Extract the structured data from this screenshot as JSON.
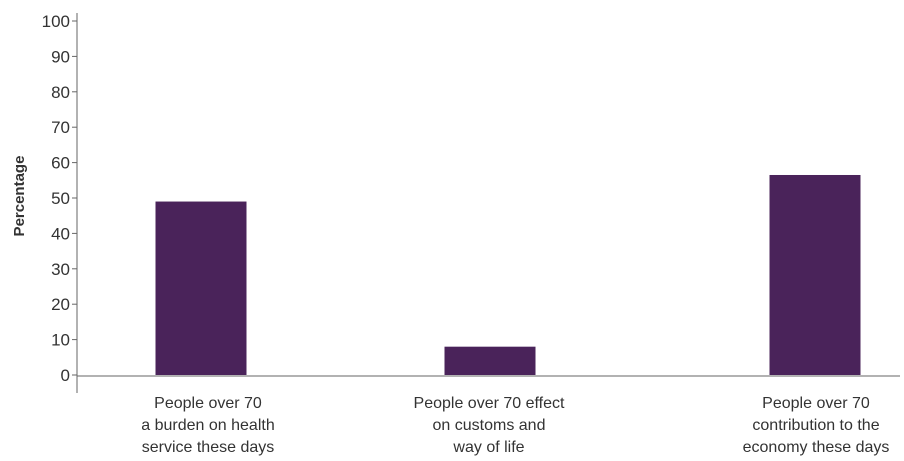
{
  "chart_data": {
    "type": "bar",
    "title": "",
    "xlabel": "",
    "ylabel": "Percentage",
    "ylim": [
      0,
      100
    ],
    "yticks": [
      0,
      10,
      20,
      30,
      40,
      50,
      60,
      70,
      80,
      90,
      100
    ],
    "grid": false,
    "categories": [
      [
        "People over 70",
        "a burden on health",
        "service these days"
      ],
      [
        "People over 70 effect",
        "on customs and",
        "way of life"
      ],
      [
        "People over 70",
        "contribution to the",
        "economy these days"
      ]
    ],
    "values": [
      49,
      8,
      56.5
    ],
    "bar_color": "#4a235a",
    "axis_color": "#666666"
  }
}
